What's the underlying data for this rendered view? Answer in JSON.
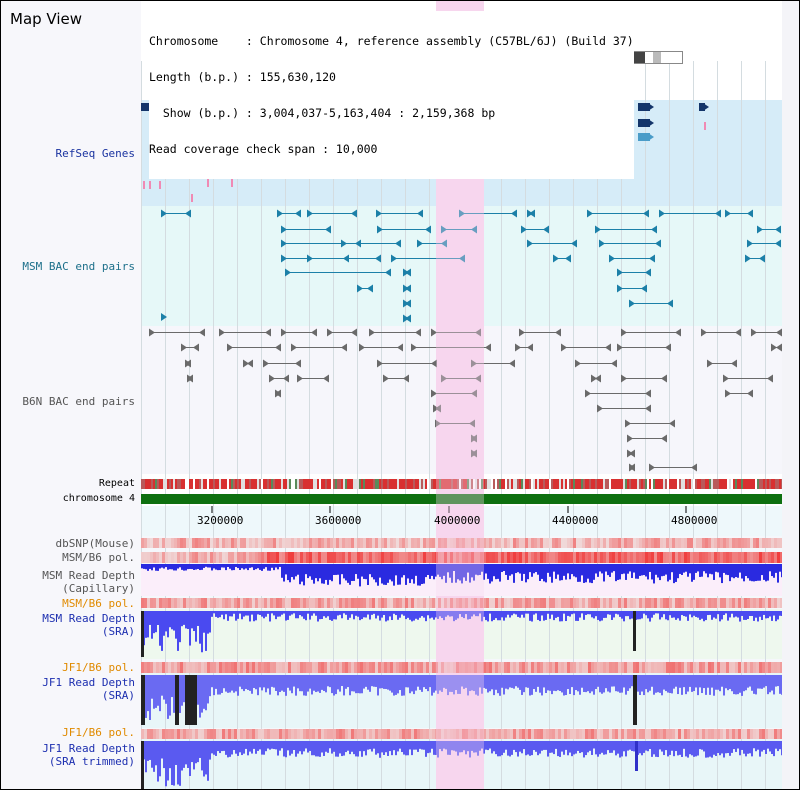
{
  "view_title": "Map View",
  "info": {
    "chromosome": "Chromosome    : Chromosome 4, reference assembly (C57BL/6J) (Build 37)",
    "length": "Length (b.p.) : 155,630,120",
    "show": "  Show (b.p.) : 3,004,037-5,163,404 : 2,159,368 bp",
    "coverage": "Read coverage check span : 10,000"
  },
  "tracks": {
    "refseq": "RefSeq Genes",
    "msm_bac": "MSM BAC end pairs",
    "b6n_bac": "B6N BAC end pairs",
    "repeat": "Repeat",
    "chromosome": "chromosome 4",
    "dbsnp": "dbSNP(Mouse)",
    "msm_b6_pol": "MSM/B6 pol.",
    "msm_depth_cap": "MSM Read Depth\n(Capillary)",
    "msm_b6_pol_2": "MSM/B6 pol.",
    "msm_depth_sra": "MSM Read Depth\n(SRA)",
    "jf1_b6_pol": "JF1/B6 pol.",
    "jf1_depth_sra": "JF1 Read Depth\n(SRA)",
    "jf1_b6_pol_2": "JF1/B6 pol.",
    "jf1_depth_trim": "JF1 Read Depth\n(SRA trimmed)"
  },
  "axis": {
    "ticks": [
      "3200000",
      "3600000",
      "4000000",
      "4400000",
      "4800000"
    ]
  },
  "colors": {
    "highlight": "#f7d6ee",
    "refseq_bg": "#d6ecf8",
    "msm_bg": "#e6f8f8",
    "gene_dark": "#14356a",
    "gene_light": "#4a9cc8",
    "gene_green": "#127a22",
    "chromosome": "#0e7010",
    "depth_blue": "#3030e0",
    "pol_red": "#e85050"
  }
}
